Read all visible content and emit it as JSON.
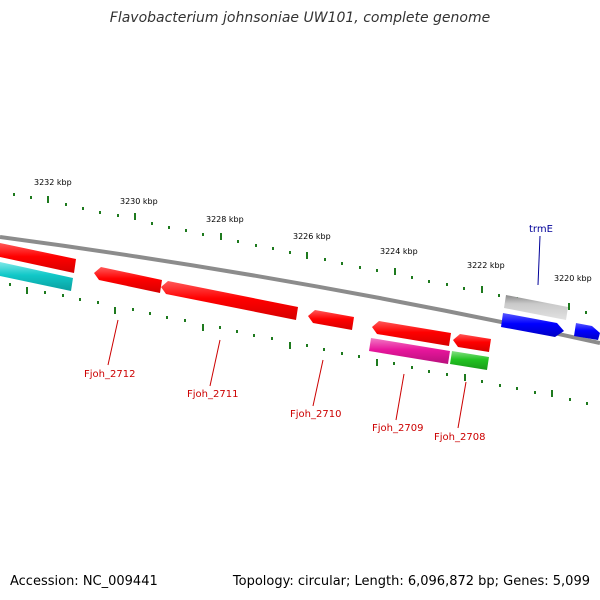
{
  "title": "Flavobacterium johnsoniae UW101, complete genome",
  "footer": {
    "accession": "Accession: NC_009441",
    "summary": "Topology: circular; Length: 6,096,872 bp; Genes: 5,099"
  },
  "colors": {
    "background": "#ffffff",
    "backbone": "#8c8c8c",
    "tick": "#1e7a1e",
    "red_gene": "#ff0000",
    "cyan_gene": "#11c8c8",
    "magenta_gene": "#e8169c",
    "green_gene": "#22c322",
    "gray_gene": "#b9b9b9",
    "blue_gene": "#0000ff",
    "red_label": "#cc0000",
    "blue_label": "#000099"
  },
  "tick_labels": [
    "3232 kbp",
    "3230 kbp",
    "3228 kbp",
    "3226 kbp",
    "3224 kbp",
    "3222 kbp",
    "3220 kbp"
  ],
  "gene_labels": [
    "Fjoh_2712",
    "Fjoh_2711",
    "Fjoh_2710",
    "Fjoh_2709",
    "Fjoh_2708",
    "trmE"
  ]
}
